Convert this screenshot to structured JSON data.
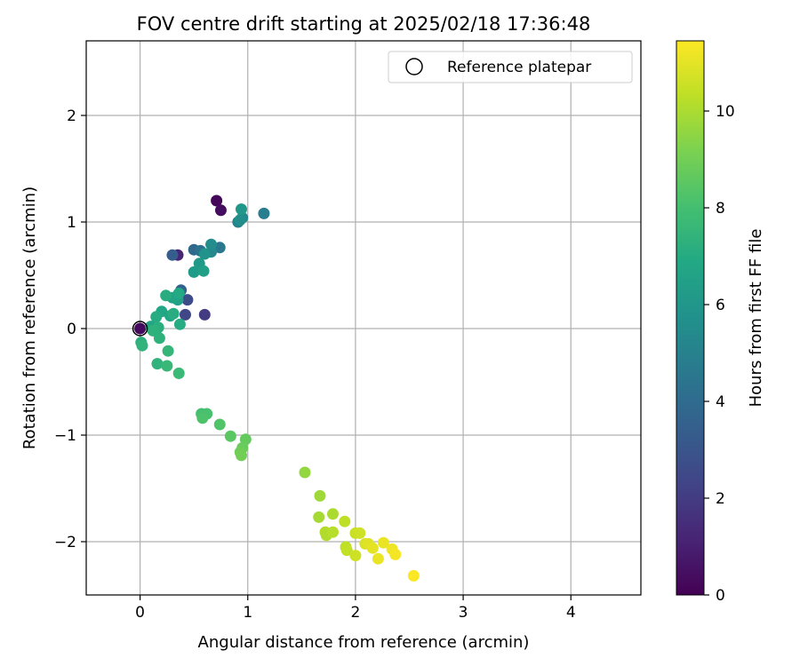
{
  "chart_data": {
    "type": "scatter",
    "title": "FOV centre drift starting at 2025/02/18 17:36:48",
    "xlabel": "Angular distance from reference (arcmin)",
    "ylabel": "Rotation from reference (arcmin)",
    "xlim": [
      -0.5,
      4.65
    ],
    "ylim": [
      -2.5,
      2.7
    ],
    "xticks": [
      0,
      1,
      2,
      3,
      4
    ],
    "yticks": [
      -2,
      -1,
      0,
      1,
      2
    ],
    "xtick_labels": [
      "0",
      "1",
      "2",
      "3",
      "4"
    ],
    "ytick_labels": [
      "−2",
      "−1",
      "0",
      "1",
      "2"
    ],
    "grid": true,
    "colormap": "viridis",
    "colorbar": {
      "label": "Hours from first FF file",
      "range": [
        0,
        11.45
      ],
      "ticks": [
        0,
        2,
        4,
        6,
        8,
        10
      ],
      "tick_labels": [
        "0",
        "2",
        "4",
        "6",
        "8",
        "10"
      ]
    },
    "legend": {
      "placement": "top-right",
      "entries": [
        "Reference platepar"
      ]
    },
    "reference_point": {
      "x": 0,
      "y": 0
    },
    "points": [
      {
        "x": 0.0,
        "y": 0.0,
        "h": 0.3
      },
      {
        "x": 0.71,
        "y": 1.2,
        "h": 0.2
      },
      {
        "x": 0.75,
        "y": 1.11,
        "h": 0.4
      },
      {
        "x": 0.35,
        "y": 0.69,
        "h": 1.2
      },
      {
        "x": 0.6,
        "y": 0.13,
        "h": 2.0
      },
      {
        "x": 0.42,
        "y": 0.13,
        "h": 2.4
      },
      {
        "x": 0.44,
        "y": 0.27,
        "h": 2.6
      },
      {
        "x": 0.3,
        "y": 0.69,
        "h": 3.4
      },
      {
        "x": 0.38,
        "y": 0.36,
        "h": 3.6
      },
      {
        "x": 0.5,
        "y": 0.74,
        "h": 3.9
      },
      {
        "x": 0.56,
        "y": 0.73,
        "h": 4.3
      },
      {
        "x": 0.74,
        "y": 0.76,
        "h": 4.6
      },
      {
        "x": 1.15,
        "y": 1.08,
        "h": 4.8
      },
      {
        "x": 0.91,
        "y": 1.0,
        "h": 5.0
      },
      {
        "x": 0.95,
        "y": 1.04,
        "h": 5.2
      },
      {
        "x": 0.66,
        "y": 0.72,
        "h": 5.3
      },
      {
        "x": 0.66,
        "y": 0.79,
        "h": 5.5
      },
      {
        "x": 0.93,
        "y": 1.02,
        "h": 5.6
      },
      {
        "x": 0.6,
        "y": 0.7,
        "h": 5.8
      },
      {
        "x": 0.94,
        "y": 1.12,
        "h": 6.0
      },
      {
        "x": 0.55,
        "y": 0.61,
        "h": 6.1
      },
      {
        "x": 0.5,
        "y": 0.53,
        "h": 6.2
      },
      {
        "x": 0.59,
        "y": 0.54,
        "h": 6.4
      },
      {
        "x": 0.35,
        "y": 0.27,
        "h": 6.5
      },
      {
        "x": 0.3,
        "y": 0.29,
        "h": 6.6
      },
      {
        "x": 0.1,
        "y": 0.02,
        "h": 6.7
      },
      {
        "x": 0.2,
        "y": 0.16,
        "h": 6.8
      },
      {
        "x": 0.28,
        "y": 0.12,
        "h": 6.8
      },
      {
        "x": 0.36,
        "y": 0.33,
        "h": 6.9
      },
      {
        "x": 0.15,
        "y": 0.11,
        "h": 7.0
      },
      {
        "x": 0.37,
        "y": 0.04,
        "h": 7.0
      },
      {
        "x": 0.31,
        "y": 0.14,
        "h": 7.1
      },
      {
        "x": 0.24,
        "y": 0.31,
        "h": 7.1
      },
      {
        "x": 0.17,
        "y": 0.01,
        "h": 7.2
      },
      {
        "x": 0.01,
        "y": -0.13,
        "h": 7.2
      },
      {
        "x": 0.18,
        "y": -0.09,
        "h": 7.3
      },
      {
        "x": 0.12,
        "y": -0.02,
        "h": 7.3
      },
      {
        "x": 0.02,
        "y": -0.16,
        "h": 7.4
      },
      {
        "x": 0.16,
        "y": -0.33,
        "h": 7.4
      },
      {
        "x": 0.26,
        "y": -0.21,
        "h": 7.5
      },
      {
        "x": 0.25,
        "y": -0.35,
        "h": 7.6
      },
      {
        "x": 0.36,
        "y": -0.42,
        "h": 7.7
      },
      {
        "x": 0.57,
        "y": -0.8,
        "h": 8.0
      },
      {
        "x": 0.62,
        "y": -0.8,
        "h": 8.1
      },
      {
        "x": 0.58,
        "y": -0.84,
        "h": 8.2
      },
      {
        "x": 0.74,
        "y": -0.9,
        "h": 8.3
      },
      {
        "x": 0.84,
        "y": -1.01,
        "h": 8.5
      },
      {
        "x": 0.98,
        "y": -1.04,
        "h": 8.7
      },
      {
        "x": 0.95,
        "y": -1.12,
        "h": 8.8
      },
      {
        "x": 0.93,
        "y": -1.16,
        "h": 8.9
      },
      {
        "x": 0.94,
        "y": -1.19,
        "h": 9.0
      },
      {
        "x": 1.53,
        "y": -1.35,
        "h": 9.6
      },
      {
        "x": 1.67,
        "y": -1.57,
        "h": 9.8
      },
      {
        "x": 1.66,
        "y": -1.77,
        "h": 9.9
      },
      {
        "x": 1.79,
        "y": -1.74,
        "h": 10.0
      },
      {
        "x": 1.72,
        "y": -1.91,
        "h": 10.1
      },
      {
        "x": 1.73,
        "y": -1.94,
        "h": 10.1
      },
      {
        "x": 1.79,
        "y": -1.91,
        "h": 10.2
      },
      {
        "x": 1.9,
        "y": -1.81,
        "h": 10.3
      },
      {
        "x": 1.91,
        "y": -2.05,
        "h": 10.3
      },
      {
        "x": 1.92,
        "y": -2.08,
        "h": 10.4
      },
      {
        "x": 2.0,
        "y": -1.92,
        "h": 10.5
      },
      {
        "x": 2.04,
        "y": -1.92,
        "h": 10.6
      },
      {
        "x": 2.0,
        "y": -2.13,
        "h": 10.6
      },
      {
        "x": 2.09,
        "y": -2.02,
        "h": 10.8
      },
      {
        "x": 2.12,
        "y": -2.02,
        "h": 10.9
      },
      {
        "x": 2.16,
        "y": -2.06,
        "h": 11.0
      },
      {
        "x": 2.21,
        "y": -2.16,
        "h": 11.1
      },
      {
        "x": 2.26,
        "y": -2.01,
        "h": 11.1
      },
      {
        "x": 2.34,
        "y": -2.07,
        "h": 11.2
      },
      {
        "x": 2.37,
        "y": -2.12,
        "h": 11.3
      },
      {
        "x": 2.54,
        "y": -2.32,
        "h": 11.4
      }
    ]
  }
}
